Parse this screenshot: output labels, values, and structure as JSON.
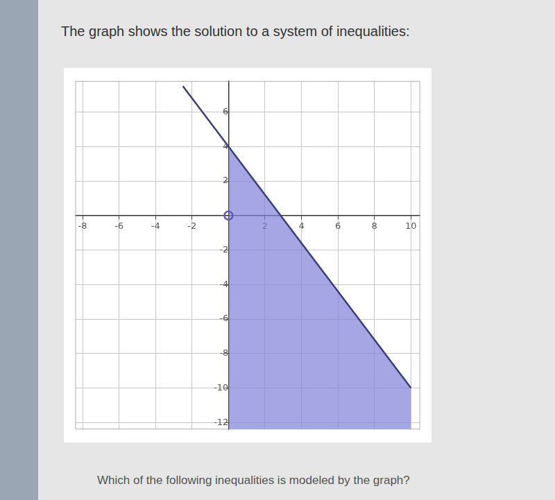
{
  "page": {
    "heading": "The graph shows the solution to a system of inequalities:",
    "question": "Which of the following inequalities is modeled by the graph?"
  },
  "chart_data": {
    "type": "line",
    "xlim": [
      -8.4,
      10.5
    ],
    "ylim": [
      -12.4,
      7.8
    ],
    "xticks": [
      -8,
      -6,
      -4,
      -2,
      2,
      4,
      6,
      8,
      10
    ],
    "yticks": [
      -12,
      -10,
      -8,
      -6,
      -4,
      -2,
      2,
      4,
      6
    ],
    "grid": true,
    "series": [
      {
        "type": "area",
        "color": "#8080d8",
        "x": [
          0,
          10
        ],
        "values": [
          4,
          -10
        ]
      },
      {
        "type": "line",
        "color": "#3a3f78",
        "x": [
          -2.5,
          10
        ],
        "values": [
          7.5,
          -10
        ]
      },
      {
        "type": "scatter",
        "marker": "open_circle",
        "color": "#5a5ab8",
        "x": [
          0
        ],
        "values": [
          0
        ]
      }
    ]
  }
}
